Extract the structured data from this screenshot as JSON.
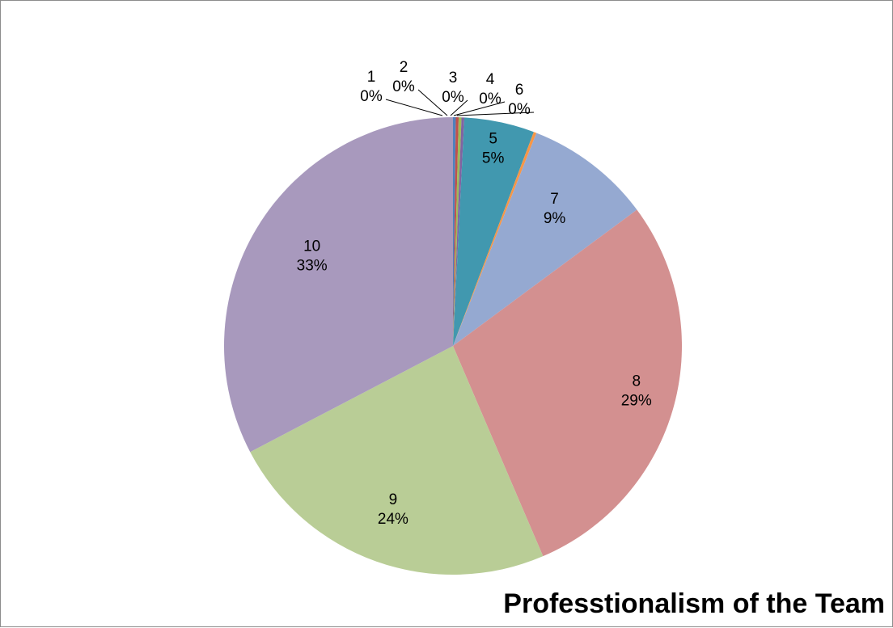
{
  "chart_data": {
    "type": "pie",
    "title": "Professtionalism of the Team",
    "categories": [
      "1",
      "2",
      "3",
      "4",
      "5",
      "6",
      "7",
      "8",
      "9",
      "10"
    ],
    "values": [
      0.2,
      0.2,
      0.2,
      0.2,
      5,
      0.2,
      9,
      29,
      24,
      33
    ],
    "percent_labels": [
      "0%",
      "0%",
      "0%",
      "0%",
      "5%",
      "0%",
      "9%",
      "29%",
      "24%",
      "33%"
    ],
    "colors": [
      "#4f81bd",
      "#c0504d",
      "#9bbb59",
      "#8064a2",
      "#4198af",
      "#f79646",
      "#95a9d1",
      "#d39090",
      "#b9cd96",
      "#a899bd"
    ],
    "start_angle": "12 o'clock",
    "direction": "clockwise",
    "legend": "none",
    "data_labels": "category and percent"
  }
}
